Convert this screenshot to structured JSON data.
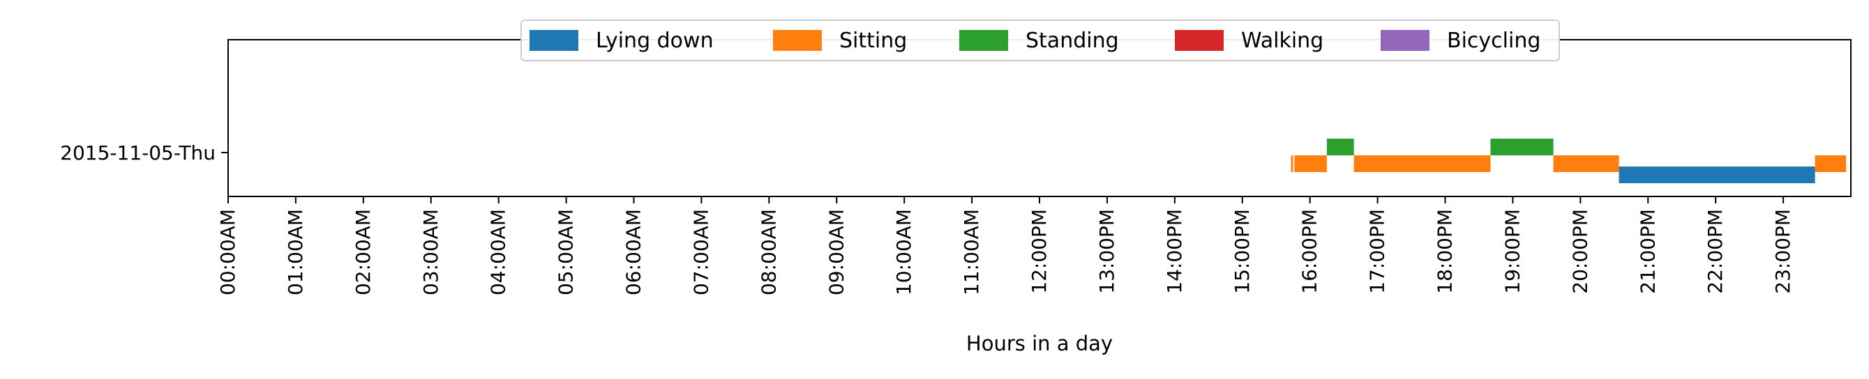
{
  "chart_data": {
    "type": "timeline",
    "xlabel": "Hours in a day",
    "ylabel": "",
    "xlim": [
      0,
      24
    ],
    "grid": false,
    "legend_position": "top-center",
    "legend": [
      {
        "name": "Lying down",
        "color": "#1f77b4"
      },
      {
        "name": "Sitting",
        "color": "#ff7f0e"
      },
      {
        "name": "Standing",
        "color": "#2ca02c"
      },
      {
        "name": "Walking",
        "color": "#d62728"
      },
      {
        "name": "Bicycling",
        "color": "#9467bd"
      }
    ],
    "x_ticks": [
      "00:00AM",
      "01:00AM",
      "02:00AM",
      "03:00AM",
      "04:00AM",
      "05:00AM",
      "06:00AM",
      "07:00AM",
      "08:00AM",
      "09:00AM",
      "10:00AM",
      "11:00AM",
      "12:00PM",
      "13:00PM",
      "14:00PM",
      "15:00PM",
      "16:00PM",
      "17:00PM",
      "18:00PM",
      "19:00PM",
      "20:00PM",
      "21:00PM",
      "22:00PM",
      "23:00PM"
    ],
    "y_categories": [
      "2015-11-05-Thu"
    ],
    "segments": [
      {
        "activity": "Sitting",
        "start": 15.72,
        "end": 15.75
      },
      {
        "activity": "Sitting",
        "start": 15.77,
        "end": 16.25
      },
      {
        "activity": "Standing",
        "start": 16.25,
        "end": 16.65
      },
      {
        "activity": "Sitting",
        "start": 16.65,
        "end": 18.67
      },
      {
        "activity": "Standing",
        "start": 18.67,
        "end": 19.6
      },
      {
        "activity": "Sitting",
        "start": 19.6,
        "end": 20.57
      },
      {
        "activity": "Lying down",
        "start": 20.57,
        "end": 23.47
      },
      {
        "activity": "Sitting",
        "start": 23.47,
        "end": 23.93
      }
    ]
  }
}
